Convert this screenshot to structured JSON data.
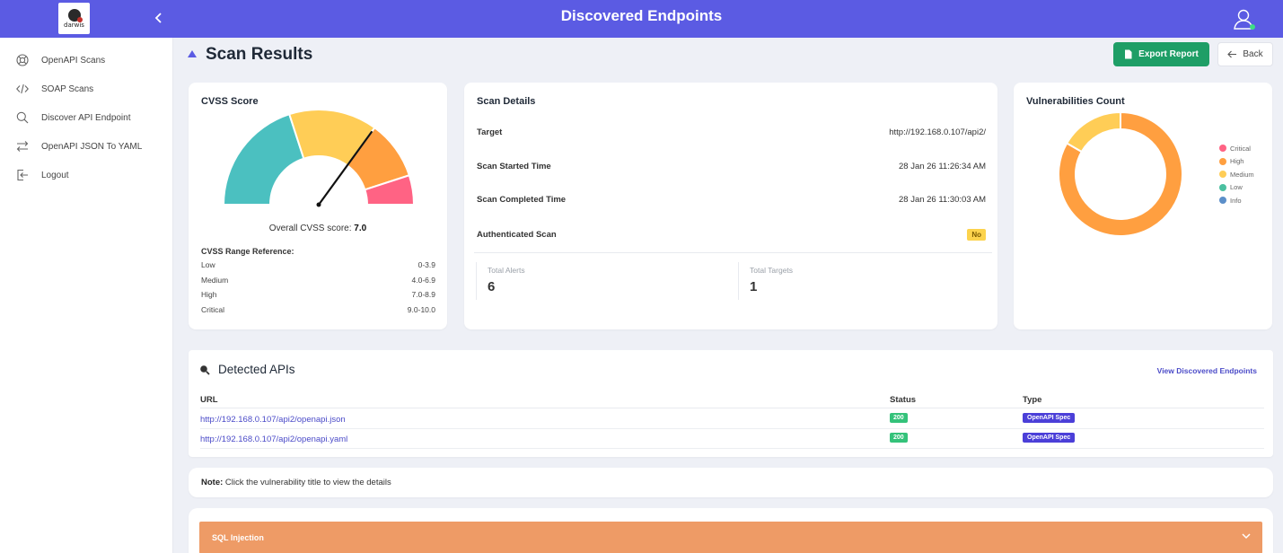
{
  "header": {
    "title": "Discovered Endpoints",
    "logo_text": "darwis",
    "collapse_icon": "chevron-left-icon",
    "user_icon": "user-icon"
  },
  "sidebar": {
    "items": [
      {
        "label": "OpenAPI Scans",
        "icon": "lifebuoy-icon"
      },
      {
        "label": "SOAP Scans",
        "icon": "code-icon"
      },
      {
        "label": "Discover API Endpoint",
        "icon": "search-icon"
      },
      {
        "label": "OpenAPI JSON To YAML",
        "icon": "swap-icon"
      },
      {
        "label": "Logout",
        "icon": "logout-icon"
      }
    ]
  },
  "page": {
    "title": "Scan Results",
    "export_label": "Export Report",
    "back_label": "Back"
  },
  "cvss": {
    "title": "CVSS Score",
    "overall_prefix": "Overall CVSS score: ",
    "overall_value": "7.0",
    "score": 7.0,
    "range_title": "CVSS Range Reference:",
    "ranges": [
      {
        "label": "Low",
        "range": "0-3.9"
      },
      {
        "label": "Medium",
        "range": "4.0-6.9"
      },
      {
        "label": "High",
        "range": "7.0-8.9"
      },
      {
        "label": "Critical",
        "range": "9.0-10.0"
      }
    ],
    "colors": {
      "low": "#4bc0c0",
      "medium": "#ffcd56",
      "high": "#ff9f40",
      "critical": "#ff6384"
    }
  },
  "scan_details": {
    "title": "Scan Details",
    "rows": [
      {
        "label": "Target",
        "value": "http://192.168.0.107/api2/"
      },
      {
        "label": "Scan Started Time",
        "value": "28 Jan 26 11:26:34 AM"
      },
      {
        "label": "Scan Completed Time",
        "value": "28 Jan 26 11:30:03 AM"
      }
    ],
    "auth_label": "Authenticated Scan",
    "auth_value": "No",
    "total_alerts_label": "Total Alerts",
    "total_alerts": "6",
    "total_targets_label": "Total Targets",
    "total_targets": "1"
  },
  "vulnerabilities": {
    "title": "Vulnerabilities Count",
    "legend": [
      {
        "label": "Critical",
        "color": "#ff6384"
      },
      {
        "label": "High",
        "color": "#ff9f40"
      },
      {
        "label": "Medium",
        "color": "#ffcd56"
      },
      {
        "label": "Low",
        "color": "#4bc0a0"
      },
      {
        "label": "Info",
        "color": "#5b8fc9"
      }
    ],
    "slices": [
      {
        "label": "High",
        "value": 5,
        "color": "#ff9f40"
      },
      {
        "label": "Medium",
        "value": 1,
        "color": "#ffcd56"
      }
    ]
  },
  "detected_apis": {
    "title": "Detected APIs",
    "view_link": "View Discovered Endpoints",
    "columns": {
      "url": "URL",
      "status": "Status",
      "type": "Type"
    },
    "rows": [
      {
        "url": "http://192.168.0.107/api2/openapi.json",
        "status": "200",
        "type": "OpenAPI Spec"
      },
      {
        "url": "http://192.168.0.107/api2/openapi.yaml",
        "status": "200",
        "type": "OpenAPI Spec"
      }
    ]
  },
  "note": {
    "bold": "Note:",
    "text": " Click the vulnerability title to view the details"
  },
  "vulnerability_list": [
    {
      "title": "SQL Injection",
      "color": "#ee9b66"
    }
  ]
}
